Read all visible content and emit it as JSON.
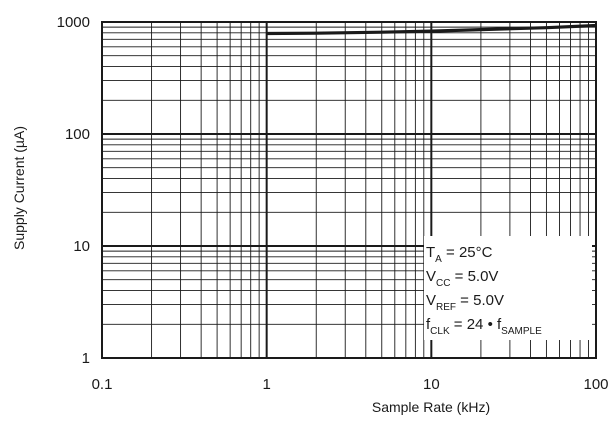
{
  "chart_data": {
    "type": "line",
    "xlabel": "Sample Rate (kHz)",
    "ylabel": "Supply Current (µA)",
    "x_scale": "log",
    "y_scale": "log",
    "xlim": [
      0.1,
      100
    ],
    "ylim": [
      1,
      1000
    ],
    "grid": true,
    "x_ticks": [
      {
        "value": 0.1,
        "label": "0.1"
      },
      {
        "value": 1,
        "label": "1"
      },
      {
        "value": 10,
        "label": "10"
      },
      {
        "value": 100,
        "label": "100"
      }
    ],
    "y_ticks": [
      {
        "value": 1,
        "label": "1"
      },
      {
        "value": 10,
        "label": "10"
      },
      {
        "value": 100,
        "label": "100"
      },
      {
        "value": 1000,
        "label": "1000"
      }
    ],
    "series": [
      {
        "color": "#1a1a1a",
        "x": [
          1,
          2,
          5,
          10,
          20,
          50,
          100
        ],
        "y": [
          790,
          795,
          810,
          830,
          855,
          890,
          930
        ]
      }
    ],
    "conditions": [
      {
        "main": "T",
        "sub": "A",
        "rest": " = 25°C"
      },
      {
        "main": "V",
        "sub": "CC",
        "rest": " = 5.0V"
      },
      {
        "main": "V",
        "sub": "REF",
        "rest": " = 5.0V"
      },
      {
        "main": "f",
        "sub": "CLK",
        "rest": " = 24 • f",
        "sub2": "SAMPLE"
      }
    ]
  }
}
